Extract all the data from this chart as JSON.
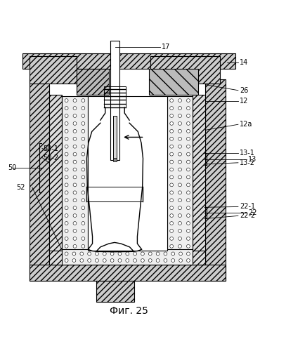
{
  "bg_color": "#ffffff",
  "line_color": "#000000",
  "fig_label": "Фиг. 25",
  "label_fs": 7,
  "title_fs": 10
}
